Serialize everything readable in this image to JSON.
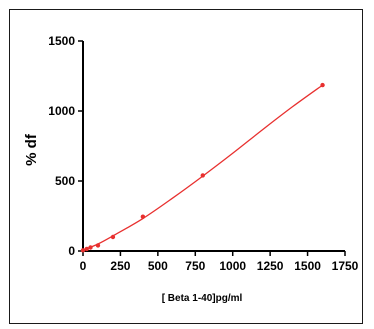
{
  "chart_data": {
    "type": "scatter",
    "xlabel": "[ Beta 1-40]pg/ml",
    "ylabel": "% df",
    "xlim": [
      0,
      1750
    ],
    "ylim": [
      0,
      1500
    ],
    "x_ticks": [
      0,
      250,
      500,
      750,
      1000,
      1250,
      1500,
      1750
    ],
    "y_ticks": [
      0,
      500,
      1000,
      1500
    ],
    "grid": false,
    "series": [
      {
        "x": [
          0,
          25,
          50,
          100,
          200,
          400,
          800,
          1600
        ],
        "y": [
          5,
          15,
          25,
          40,
          100,
          245,
          540,
          1185
        ]
      }
    ],
    "fit": {
      "type": "curve",
      "x": [
        0,
        100,
        200,
        400,
        600,
        800,
        1000,
        1200,
        1400,
        1600
      ],
      "y": [
        5,
        50,
        108,
        232,
        379,
        535,
        698,
        867,
        1031,
        1185
      ]
    },
    "colors": {
      "points": "#e8302f",
      "fit_line": "#e8302f",
      "axis": "#000000"
    }
  }
}
